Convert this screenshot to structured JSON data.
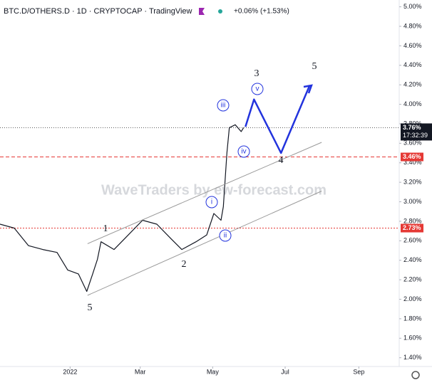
{
  "chart_data": {
    "type": "line",
    "title": "BTC.D/OTHERS.D · 1D · CRYPTOCAP · TradingView",
    "change": "+0.06% (+1.53%)",
    "watermark": "WaveTraders by ew-forecast.com",
    "xlim": [
      -59,
      277
    ],
    "ylim": [
      1.31,
      5.07
    ],
    "xticks": [
      {
        "value": 0,
        "label": "2022"
      },
      {
        "value": 59,
        "label": "Mar"
      },
      {
        "value": 120,
        "label": "May"
      },
      {
        "value": 181,
        "label": "Jul"
      },
      {
        "value": 243,
        "label": "Sep"
      }
    ],
    "yticks": [
      {
        "value": 1.4,
        "label": "1.40%"
      },
      {
        "value": 1.6,
        "label": "1.60%"
      },
      {
        "value": 1.8,
        "label": "1.80%"
      },
      {
        "value": 2.0,
        "label": "2.00%"
      },
      {
        "value": 2.2,
        "label": "2.20%"
      },
      {
        "value": 2.4,
        "label": "2.40%"
      },
      {
        "value": 2.6,
        "label": "2.60%"
      },
      {
        "value": 2.8,
        "label": "2.80%"
      },
      {
        "value": 3.0,
        "label": "3.00%"
      },
      {
        "value": 3.2,
        "label": "3.20%"
      },
      {
        "value": 3.4,
        "label": "3.40%"
      },
      {
        "value": 3.6,
        "label": "3.60%"
      },
      {
        "value": 3.8,
        "label": "3.80%"
      },
      {
        "value": 4.0,
        "label": "4.00%"
      },
      {
        "value": 4.2,
        "label": "4.20%"
      },
      {
        "value": 4.4,
        "label": "4.40%"
      },
      {
        "value": 4.6,
        "label": "4.60%"
      },
      {
        "value": 4.8,
        "label": "4.80%"
      },
      {
        "value": 5.0,
        "label": "5.00%"
      }
    ],
    "series": [
      {
        "color": "#131722",
        "width": 1.2,
        "x": [
          -59,
          -47,
          -35,
          -23,
          -11,
          -2,
          7,
          14,
          19,
          23,
          26,
          37,
          49,
          61,
          73,
          85,
          94,
          106,
          115,
          121,
          127,
          129,
          132,
          134,
          139,
          144,
          146
        ],
        "values": [
          2.77,
          2.73,
          2.55,
          2.51,
          2.48,
          2.3,
          2.26,
          2.08,
          2.26,
          2.41,
          2.59,
          2.51,
          2.66,
          2.81,
          2.77,
          2.62,
          2.51,
          2.59,
          2.66,
          2.88,
          2.81,
          2.95,
          3.5,
          3.76,
          3.79,
          3.72,
          3.76
        ]
      },
      {
        "color": "#2233dd",
        "width": 2.5,
        "x": [
          147.6,
          154.8,
          177.5,
          201.5
        ],
        "values": [
          3.77,
          4.05,
          3.5,
          4.19
        ]
      },
      {
        "color": "#9a9a9a",
        "width": 1,
        "x": [
          14.7,
          211.7
        ],
        "values": [
          2.57,
          3.61
        ]
      },
      {
        "color": "#9a9a9a",
        "width": 1,
        "x": [
          14.7,
          211.7
        ],
        "values": [
          2.04,
          3.11
        ]
      }
    ],
    "last_price": {
      "value": 3.76,
      "label": "3.76%"
    },
    "countdown": "17:32:39",
    "levels": [
      {
        "value": 3.46,
        "label": "3.46%",
        "color": "#e53935"
      },
      {
        "value": 2.73,
        "label": "2.73%",
        "color": "#e53935"
      }
    ],
    "annotations": [
      "3",
      "5",
      "1",
      "2",
      "5",
      "4",
      "i",
      "ii",
      "iii",
      "iv",
      "v"
    ]
  }
}
